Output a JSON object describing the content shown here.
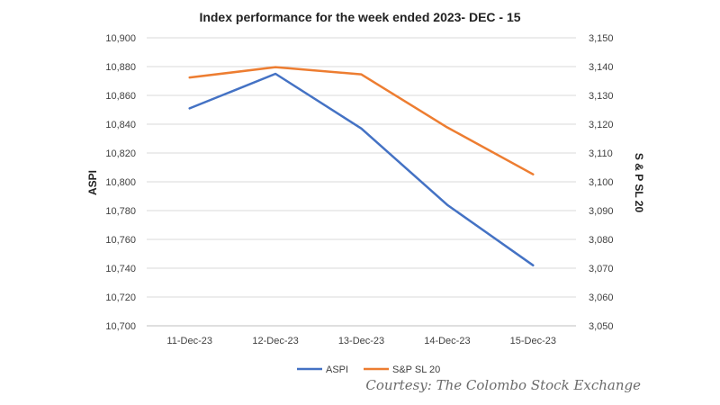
{
  "chart_data": {
    "type": "line",
    "title": "Index performance for the week ended 2023- DEC - 15",
    "categories": [
      "11-Dec-23",
      "12-Dec-23",
      "13-Dec-23",
      "14-Dec-23",
      "15-Dec-23"
    ],
    "y_left": {
      "label": "ASPI",
      "range": [
        10700,
        10900
      ],
      "ticks": [
        "10,700",
        "10,720",
        "10,740",
        "10,760",
        "10,780",
        "10,800",
        "10,820",
        "10,840",
        "10,860",
        "10,880",
        "10,900"
      ]
    },
    "y_right": {
      "label": "S & P SL 20",
      "range": [
        3050,
        3150
      ],
      "ticks": [
        "3,050",
        "3,060",
        "3,070",
        "3,080",
        "3,090",
        "3,100",
        "3,110",
        "3,120",
        "3,130",
        "3,140",
        "3,150"
      ]
    },
    "series": [
      {
        "name": "ASPI",
        "axis": "left",
        "color": "#4472C4",
        "values": [
          10851,
          10875,
          10837,
          10784,
          10742
        ]
      },
      {
        "name": "S&P SL 20",
        "axis": "right",
        "color": "#ED7D31",
        "values": [
          3136.2,
          3139.8,
          3137.3,
          3118.9,
          3102.6
        ]
      }
    ],
    "grid": true,
    "legend_position": "bottom"
  },
  "credit": "Courtesy: The Colombo Stock Exchange"
}
